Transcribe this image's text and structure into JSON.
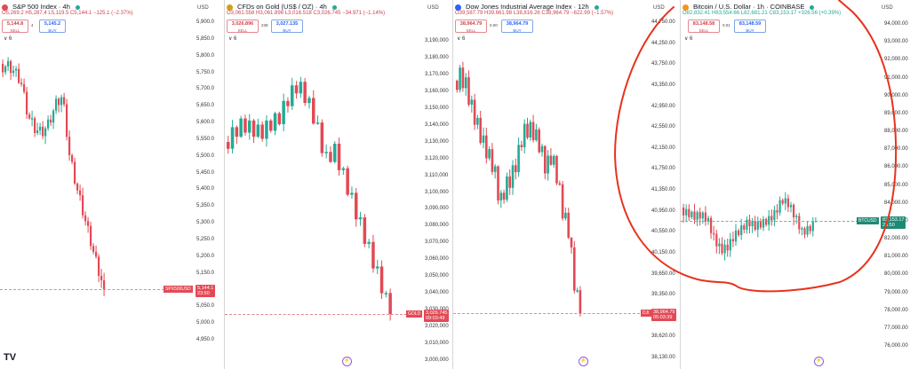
{
  "panes": [
    {
      "id": "spx",
      "title": "S&P 500 Index · 4h",
      "logo_color": "#e24a55",
      "ohlc": "O5,269.2 H5,287.4 L5,119.5 C5,144.1 −125.1 (−2.37%)",
      "ohlc_color": "#d1414a",
      "sell_price": "5,144.8",
      "sell_label": "SELL",
      "spread": "4",
      "buy_price": "5,145.2",
      "buy_label": "BUY",
      "sub": "∨ 6",
      "axis_ticks": [
        "5,900.0",
        "5,850.0",
        "5,800.0",
        "5,750.0",
        "5,700.0",
        "5,650.0",
        "5,600.0",
        "5,550.0",
        "5,500.0",
        "5,450.0",
        "5,400.0",
        "5,350.0",
        "5,300.0",
        "5,250.0",
        "5,200.0",
        "5,150.0",
        "5,100.0",
        "5,050.0",
        "5,000.0",
        "4,950.0"
      ],
      "price_tag": "5,144.1",
      "price_tag_time": "23:50",
      "symbol_tag": "SPX500USD"
    },
    {
      "id": "gold",
      "title": "CFDs on Gold (US$ / OZ) · 4h",
      "logo_color": "#d4a017",
      "ohlc": "O3,061.558 H3,061.896 L3,016.518 C3,026.745 −34.971 (−1.14%)",
      "ohlc_color": "#d1414a",
      "sell_price": "3,026.896",
      "sell_label": "SELL",
      "spread": "239",
      "buy_price": "3,027.135",
      "buy_label": "BUY",
      "sub": "∨ 6",
      "axis_ticks": [
        "3,190,000",
        "3,180,000",
        "3,170,000",
        "3,160,000",
        "3,150,000",
        "3,140,000",
        "3,130,000",
        "3,120,000",
        "3,110,000",
        "3,100,000",
        "3,090,000",
        "3,080,000",
        "3,070,000",
        "3,060,000",
        "3,050,000",
        "3,040,000",
        "3,030,000",
        "3,020,000",
        "3,010,000",
        "3,000,000"
      ],
      "price_tag": "3,026.745",
      "price_tag_time": "09:03:49",
      "symbol_tag": "GOLD"
    },
    {
      "id": "dji",
      "title": "Dow Jones Industrial Average Index · 12h",
      "logo_color": "#2962ff",
      "ohlc": "O39,587.79 H39,661.98 L38,816.26 C38,964.79 −622.99 (−1.57%)",
      "ohlc_color": "#d1414a",
      "sell_price": "38,964.79",
      "sell_label": "SELL",
      "spread": "0.00",
      "buy_price": "38,964.79",
      "buy_label": "BUY",
      "sub": "∨ 6",
      "axis_ticks": [
        "44,750.00",
        "44,250.00",
        "43,750.00",
        "43,350.00",
        "42,950.00",
        "42,550.00",
        "42,150.00",
        "41,750.00",
        "41,350.00",
        "40,950.00",
        "40,550.00",
        "40,150.00",
        "39,650.00",
        "39,350.00",
        "38,950.00",
        "38,620.00",
        "38,130.00"
      ],
      "price_tag": "38,964.79",
      "price_tag_time": "05:03:39",
      "symbol_tag": "DJI"
    },
    {
      "id": "btc",
      "title": "Bitcoin / U.S. Dollar · 1h · COINBASE",
      "logo_color": "#f7931a",
      "ohlc": "O82,832.41 H83,554.66 L82,681.21 C83,153.17 +326.56 (+0.39%)",
      "ohlc_color": "#22ab94",
      "sell_price": "83,148.58",
      "sell_label": "SELL",
      "spread": "0.01",
      "buy_price": "83,148.59",
      "buy_label": "BUY",
      "sub": "∨ 6",
      "axis_ticks": [
        "94,000.00",
        "93,000.00",
        "92,000.00",
        "91,000.00",
        "90,000.00",
        "89,000.00",
        "88,000.00",
        "87,000.00",
        "86,000.00",
        "85,000.00",
        "84,000.00",
        "83,000.00",
        "82,000.00",
        "81,000.00",
        "80,000.00",
        "79,000.00",
        "78,000.00",
        "77,000.00",
        "76,000.00"
      ],
      "price_tag": "83,153.17",
      "price_tag_time": "23:50",
      "symbol_tag": "BTCUSD"
    }
  ],
  "usd_label": "USD",
  "tv_logo": "TV",
  "colors": {
    "up": "#22ab94",
    "down": "#e24a55",
    "annotation": "#e8321e"
  }
}
